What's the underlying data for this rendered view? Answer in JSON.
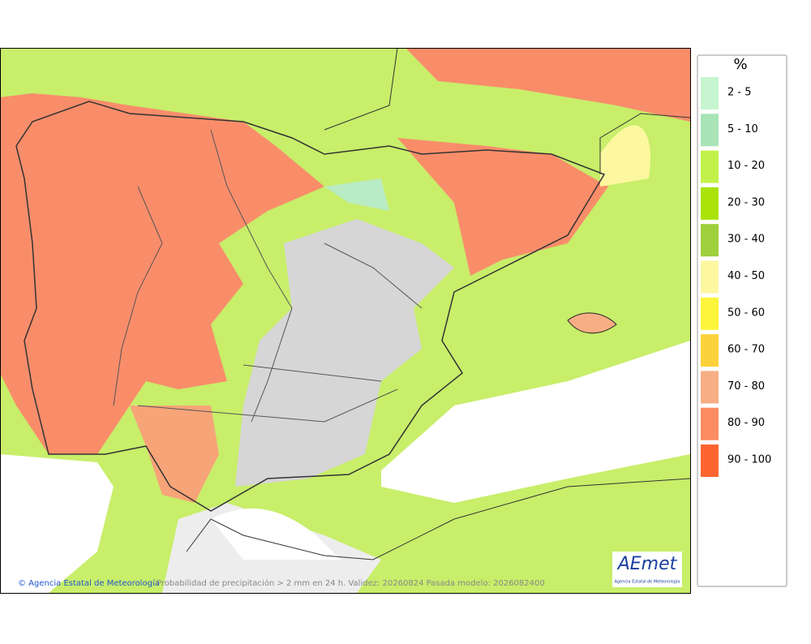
{
  "legend": {
    "title": "%",
    "items": [
      {
        "label": "2 - 5",
        "color": "#c6f5cf"
      },
      {
        "label": "5 - 10",
        "color": "#a8e4b6"
      },
      {
        "label": "10 - 20",
        "color": "#c2f24a"
      },
      {
        "label": "20 - 30",
        "color": "#a9e30a"
      },
      {
        "label": "30 - 40",
        "color": "#9fcf3c"
      },
      {
        "label": "40 - 50",
        "color": "#fdf8a0"
      },
      {
        "label": "50 - 60",
        "color": "#fdf53c"
      },
      {
        "label": "60 - 70",
        "color": "#fdd13a"
      },
      {
        "label": "70 - 80",
        "color": "#f7ae84"
      },
      {
        "label": "80 - 90",
        "color": "#fc8c62"
      },
      {
        "label": "90 - 100",
        "color": "#fc6530"
      }
    ]
  },
  "footer": {
    "credit": "© Agencia Estatal de Meteorología",
    "caption": "Probabilidad de precipitación > 2 mm en 24 h. Validez: 20260824 Pasada modelo: 2026082400"
  },
  "logo": {
    "name": "AEmet",
    "subtitle": "Agencia Estatal de Meteorología"
  }
}
